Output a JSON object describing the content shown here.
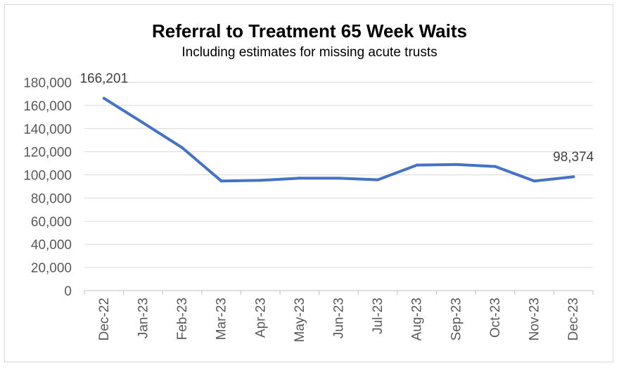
{
  "chart_data": {
    "type": "line",
    "title": "Referral to Treatment 65 Week Waits",
    "subtitle": "Including estimates for missing acute trusts",
    "categories": [
      "Dec-22",
      "Jan-23",
      "Feb-23",
      "Mar-23",
      "Apr-23",
      "May-23",
      "Jun-23",
      "Jul-23",
      "Aug-23",
      "Sep-23",
      "Oct-23",
      "Nov-23",
      "Dec-23"
    ],
    "series": [
      {
        "values": [
          166201,
          145000,
          123500,
          94700,
          95300,
          97200,
          97100,
          95800,
          108500,
          109000,
          107300,
          94700,
          98374
        ],
        "color": "#4472c4"
      }
    ],
    "data_labels": [
      {
        "index": 0,
        "text": "166,201"
      },
      {
        "index": 12,
        "text": "98,374"
      }
    ],
    "ylim": [
      0,
      180000
    ],
    "yticks": [
      0,
      20000,
      40000,
      60000,
      80000,
      100000,
      120000,
      140000,
      160000,
      180000
    ],
    "ytick_labels": [
      "0",
      "20,000",
      "40,000",
      "60,000",
      "80,000",
      "100,000",
      "120,000",
      "140,000",
      "160,000",
      "180,000"
    ],
    "grid": true,
    "legend": "none"
  }
}
